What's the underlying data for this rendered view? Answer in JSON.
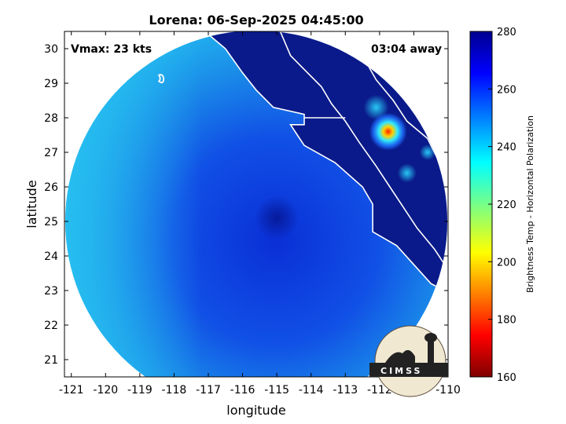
{
  "chart_data": {
    "type": "heatmap",
    "title": "Lorena: 06-Sep-2025 04:45:00",
    "xlabel": "longitude",
    "ylabel": "latitude",
    "xlim": [
      -121.2,
      -110
    ],
    "ylim": [
      20.5,
      30.5
    ],
    "x_ticks": [
      -121,
      -120,
      -119,
      -118,
      -117,
      -116,
      -115,
      -114,
      -113,
      -112,
      -111,
      -110
    ],
    "y_ticks": [
      21,
      22,
      23,
      24,
      25,
      26,
      27,
      28,
      29,
      30
    ],
    "annotation_left": "Vmax: 23 kts",
    "annotation_right": "03:04 away",
    "colorbar": {
      "label": "Brightness Temp - Horizontal Polarization",
      "range": [
        160,
        280
      ],
      "ticks": [
        280,
        260,
        240,
        220,
        200,
        180,
        160
      ],
      "colormap": "jet"
    },
    "storm_center": {
      "lon": -115.0,
      "lat": 25.1
    },
    "swath_center": {
      "lon": -115.6,
      "lat": 25.0
    },
    "hot_spot": {
      "lon": -111.75,
      "lat": 27.6,
      "value": 190
    },
    "logo": "CIMSS"
  },
  "colors": {
    "ocean_dark": "#0a2fd6",
    "ocean_light": "#1fb2ee",
    "land": "#0a1a8a",
    "coast": "#ffffff"
  }
}
